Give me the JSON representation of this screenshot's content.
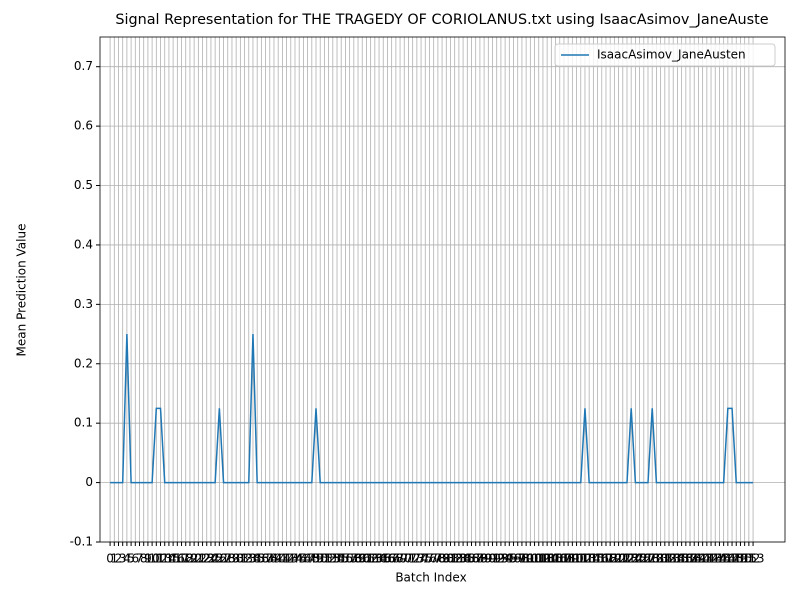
{
  "chart_data": {
    "type": "line",
    "title": "Signal Representation for THE TRAGEDY OF CORIOLANUS.txt using IsaacAsimov_JaneAuste",
    "xlabel": "Batch Index",
    "ylabel": "Mean Prediction Value",
    "x": [
      0,
      1,
      2,
      3,
      4,
      5,
      6,
      7,
      8,
      9,
      10,
      11,
      12,
      13,
      14,
      15,
      16,
      17,
      18,
      19,
      20,
      21,
      22,
      23,
      24,
      25,
      26,
      27,
      28,
      29,
      30,
      31,
      32,
      33,
      34,
      35,
      36,
      37,
      38,
      39,
      40,
      41,
      42,
      43,
      44,
      45,
      46,
      47,
      48,
      49,
      50,
      51,
      52,
      53,
      54,
      55,
      56,
      57,
      58,
      59,
      60,
      61,
      62,
      63,
      64,
      65,
      66,
      67,
      68,
      69,
      70,
      71,
      72,
      73,
      74,
      75,
      76,
      77,
      78,
      79,
      80,
      81,
      82,
      83,
      84,
      85,
      86,
      87,
      88,
      89,
      90,
      91,
      92,
      93,
      94,
      95,
      96,
      97,
      98,
      99,
      100,
      101,
      102,
      103,
      104,
      105,
      106,
      107,
      108,
      109,
      110,
      111,
      112,
      113,
      114,
      115,
      116,
      117,
      118,
      119,
      120,
      121,
      122,
      123,
      124,
      125,
      126,
      127,
      128,
      129,
      130,
      131,
      132,
      133,
      134,
      135,
      136,
      137,
      138,
      139,
      140,
      141,
      142,
      143,
      144,
      145,
      146,
      147,
      148,
      149,
      150,
      151,
      152,
      153
    ],
    "series": [
      {
        "name": "IsaacAsimov_JaneAusten",
        "color": "#1f77b4",
        "values": [
          0,
          0,
          0,
          0,
          0.25,
          0,
          0,
          0,
          0,
          0,
          0,
          0.125,
          0.125,
          0,
          0,
          0,
          0,
          0,
          0,
          0,
          0,
          0,
          0,
          0,
          0,
          0,
          0.125,
          0,
          0,
          0,
          0,
          0,
          0,
          0,
          0.25,
          0,
          0,
          0,
          0,
          0,
          0,
          0,
          0,
          0,
          0,
          0,
          0,
          0,
          0,
          0.125,
          0,
          0,
          0,
          0,
          0,
          0,
          0,
          0,
          0,
          0,
          0,
          0,
          0,
          0,
          0,
          0,
          0,
          0,
          0,
          0,
          0,
          0,
          0,
          0,
          0,
          0,
          0,
          0,
          0,
          0,
          0,
          0,
          0,
          0,
          0,
          0,
          0,
          0,
          0,
          0,
          0,
          0,
          0,
          0,
          0,
          0,
          0,
          0,
          0,
          0,
          0,
          0,
          0,
          0,
          0,
          0,
          0,
          0,
          0,
          0,
          0,
          0,
          0,
          0.125,
          0,
          0,
          0,
          0,
          0,
          0,
          0,
          0,
          0,
          0,
          0.125,
          0,
          0,
          0,
          0,
          0.125,
          0,
          0,
          0,
          0,
          0,
          0,
          0,
          0,
          0,
          0,
          0,
          0,
          0,
          0,
          0,
          0,
          0,
          0.125,
          0.125,
          0,
          0,
          0,
          0,
          0
        ]
      }
    ],
    "xlim": [
      -2.4,
      160.6
    ],
    "xticks": [
      0,
      1,
      2,
      3,
      4,
      5,
      6,
      7,
      8,
      9,
      10,
      11,
      12,
      13,
      14,
      15,
      16,
      17,
      18,
      19,
      20,
      21,
      22,
      23,
      24,
      25,
      26,
      27,
      28,
      29,
      30,
      31,
      32,
      33,
      34,
      35,
      36,
      37,
      38,
      39,
      40,
      41,
      42,
      43,
      44,
      45,
      46,
      47,
      48,
      49,
      50,
      51,
      52,
      53,
      54,
      55,
      56,
      57,
      58,
      59,
      60,
      61,
      62,
      63,
      64,
      65,
      66,
      67,
      68,
      69,
      70,
      71,
      72,
      73,
      74,
      75,
      76,
      77,
      78,
      79,
      80,
      81,
      82,
      83,
      84,
      85,
      86,
      87,
      88,
      89,
      90,
      91,
      92,
      93,
      94,
      95,
      96,
      97,
      98,
      99,
      100,
      101,
      102,
      103,
      104,
      105,
      106,
      107,
      108,
      109,
      110,
      111,
      112,
      113,
      114,
      115,
      116,
      117,
      118,
      119,
      120,
      121,
      122,
      123,
      124,
      125,
      126,
      127,
      128,
      129,
      130,
      131,
      132,
      133,
      134,
      135,
      136,
      137,
      138,
      139,
      140,
      141,
      142,
      143,
      144,
      145,
      146,
      147,
      148,
      149,
      150,
      151,
      152,
      153
    ],
    "ylim": [
      -0.1,
      0.75
    ],
    "yticks": [
      -0.1,
      0.0,
      0.1,
      0.2,
      0.3,
      0.4,
      0.5,
      0.6,
      0.7
    ],
    "grid": true,
    "legend": "upper right"
  }
}
